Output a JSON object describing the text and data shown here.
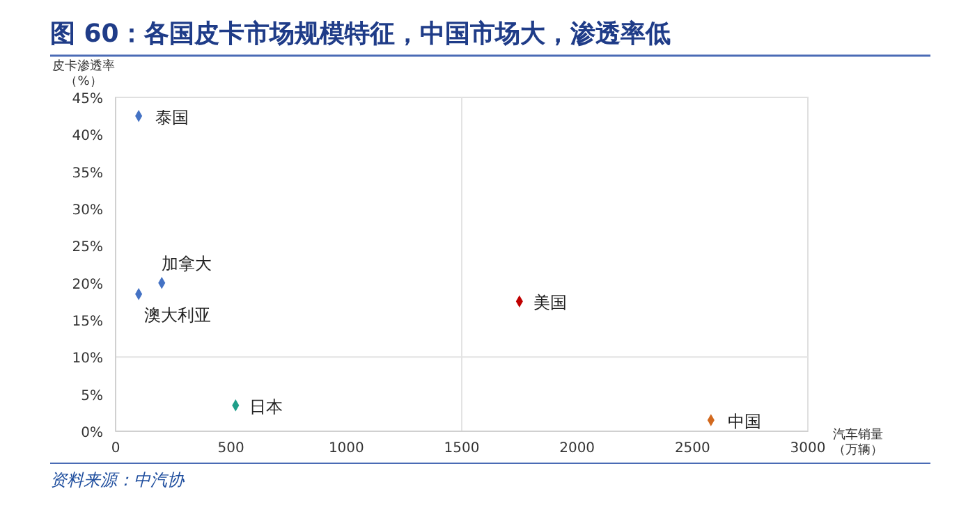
{
  "chart_data": {
    "type": "scatter",
    "title": "图 60：各国皮卡市场规模特征，中国市场大，渗透率低",
    "xlabel": "汽车销量（万辆）",
    "ylabel": "皮卡渗透率（%）",
    "annotations": [
      "资料来源：中汽协"
    ],
    "marker": "diamond",
    "grid": false,
    "xlim": [
      0,
      3000
    ],
    "xticks": [
      0,
      500,
      1000,
      1500,
      2000,
      2500,
      3000
    ],
    "ylim": [
      0,
      45
    ],
    "yticks": [
      {
        "value": 0,
        "label": "0%"
      },
      {
        "value": 5,
        "label": "5%"
      },
      {
        "value": 10,
        "label": "10%"
      },
      {
        "value": 15,
        "label": "15%"
      },
      {
        "value": 20,
        "label": "20%"
      },
      {
        "value": 25,
        "label": "25%"
      },
      {
        "value": 30,
        "label": "30%"
      },
      {
        "value": 35,
        "label": "35%"
      },
      {
        "value": 40,
        "label": "40%"
      },
      {
        "value": 45,
        "label": "45%"
      }
    ],
    "ref_lines": [
      {
        "axis": "x",
        "value": 1500,
        "color": "#e3e3e3"
      },
      {
        "axis": "y",
        "value": 10,
        "color": "#e3e3e3"
      }
    ],
    "series": [
      {
        "name": "泰国",
        "color": "#4472c4",
        "x": [
          100
        ],
        "values": [
          42.5
        ]
      },
      {
        "name": "加拿大",
        "color": "#4472c4",
        "x": [
          200
        ],
        "values": [
          20
        ]
      },
      {
        "name": "澳大利亚",
        "color": "#4472c4",
        "x": [
          100
        ],
        "values": [
          18.5
        ]
      },
      {
        "name": "美国",
        "color": "#c00000",
        "x": [
          1750
        ],
        "values": [
          17.5
        ]
      },
      {
        "name": "日本",
        "color": "#1f9e89",
        "x": [
          520
        ],
        "values": [
          3.5
        ]
      },
      {
        "name": "中国",
        "color": "#d2691e",
        "x": [
          2580
        ],
        "values": [
          1.5
        ]
      }
    ]
  }
}
